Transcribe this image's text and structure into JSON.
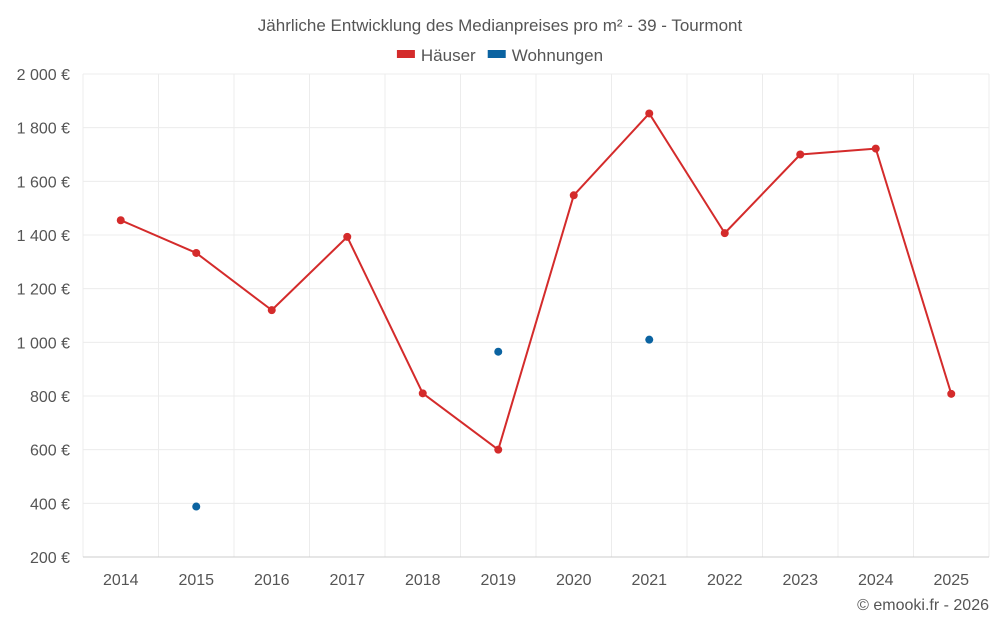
{
  "chart_data": {
    "type": "line",
    "title": "Jährliche Entwicklung des Medianpreises pro m² - 39 - Tourmont",
    "categories": [
      "2014",
      "2015",
      "2016",
      "2017",
      "2018",
      "2019",
      "2020",
      "2021",
      "2022",
      "2023",
      "2024",
      "2025"
    ],
    "series": [
      {
        "name": "Häuser",
        "color": "#d42b2b",
        "values": [
          1455,
          1333,
          1120,
          1393,
          810,
          600,
          1548,
          1853,
          1407,
          1700,
          1722,
          808
        ],
        "style": "line-with-markers"
      },
      {
        "name": "Wohnungen",
        "color": "#0b63a1",
        "values": [
          null,
          388,
          null,
          null,
          null,
          965,
          null,
          1010,
          null,
          null,
          null,
          null
        ],
        "style": "markers-only"
      }
    ],
    "ylim": [
      200,
      2000
    ],
    "yticks": [
      200,
      400,
      600,
      800,
      1000,
      1200,
      1400,
      1600,
      1800,
      2000
    ],
    "ytick_labels": [
      "200 €",
      "400 €",
      "600 €",
      "800 €",
      "1 000 €",
      "1 200 €",
      "1 400 €",
      "1 600 €",
      "1 800 €",
      "2 000 €"
    ],
    "xlabel": "",
    "ylabel": "",
    "grid": true,
    "legend_position": "top-center"
  },
  "credit": "© emooki.fr - 2026"
}
